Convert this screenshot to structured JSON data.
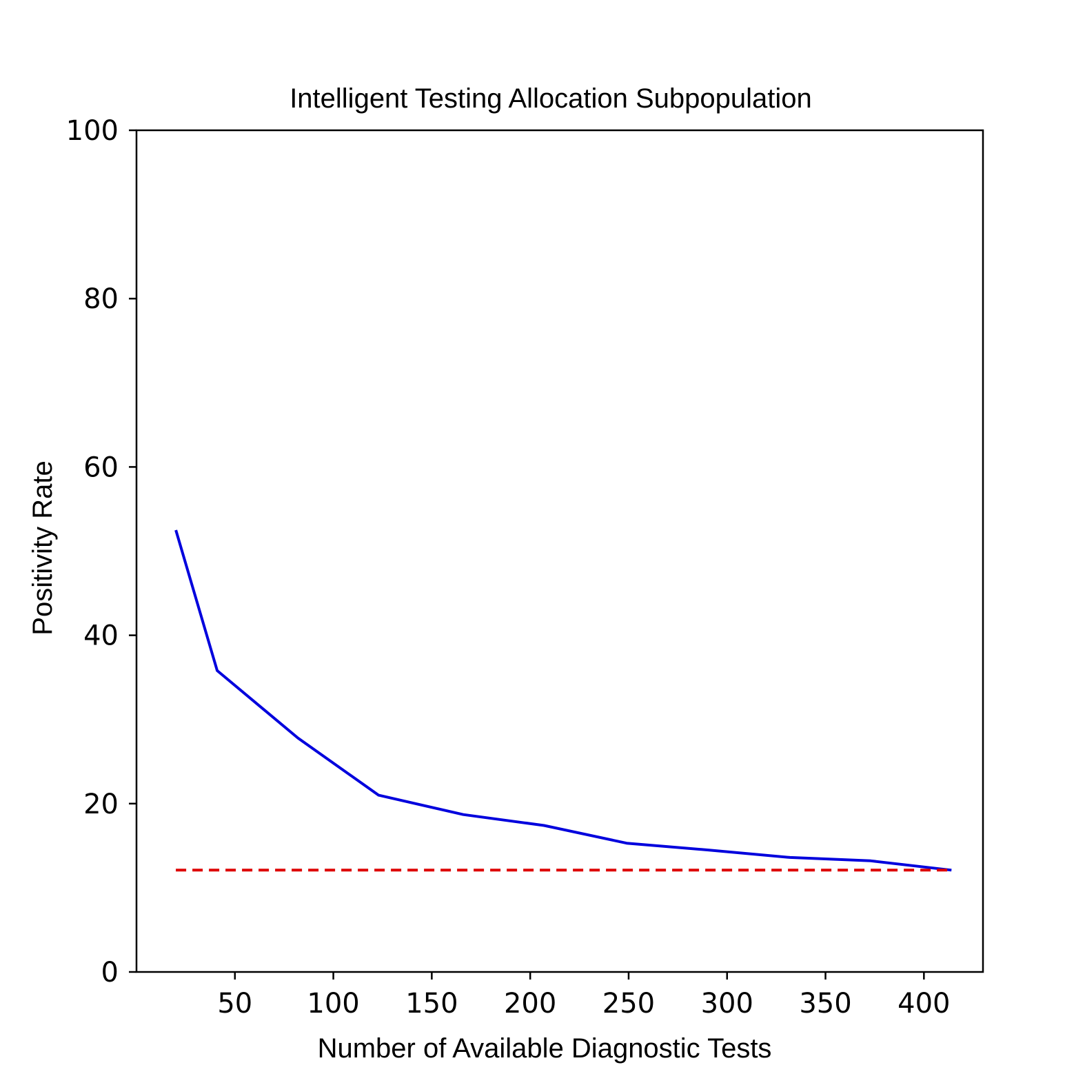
{
  "chart_data": {
    "type": "line",
    "title": "Intelligent Testing Allocation Subpopulation",
    "xlabel": "Number of Available Diagnostic Tests",
    "ylabel": "Positivity Rate",
    "xlim": [
      0,
      430
    ],
    "ylim": [
      0,
      100
    ],
    "xticks": [
      50,
      100,
      150,
      200,
      250,
      300,
      350,
      400
    ],
    "xtick_labels": [
      "50",
      "100",
      "150",
      "200",
      "250",
      "300",
      "350",
      "400"
    ],
    "yticks": [
      0,
      20,
      40,
      60,
      80,
      100
    ],
    "ytick_labels": [
      "0",
      "20",
      "40",
      "60",
      "80",
      "100"
    ],
    "grid": false,
    "series": [
      {
        "color": "#0000dd",
        "style": "solid",
        "x": [
          20,
          41,
          82,
          123,
          166,
          207,
          249,
          290,
          332,
          373,
          414
        ],
        "y": [
          52.5,
          35.8,
          27.8,
          21.0,
          18.7,
          17.4,
          15.3,
          14.5,
          13.6,
          13.2,
          12.1
        ]
      },
      {
        "color": "#dd0000",
        "style": "dashed",
        "x": [
          20,
          414
        ],
        "y": [
          12.1,
          12.1
        ]
      }
    ]
  }
}
